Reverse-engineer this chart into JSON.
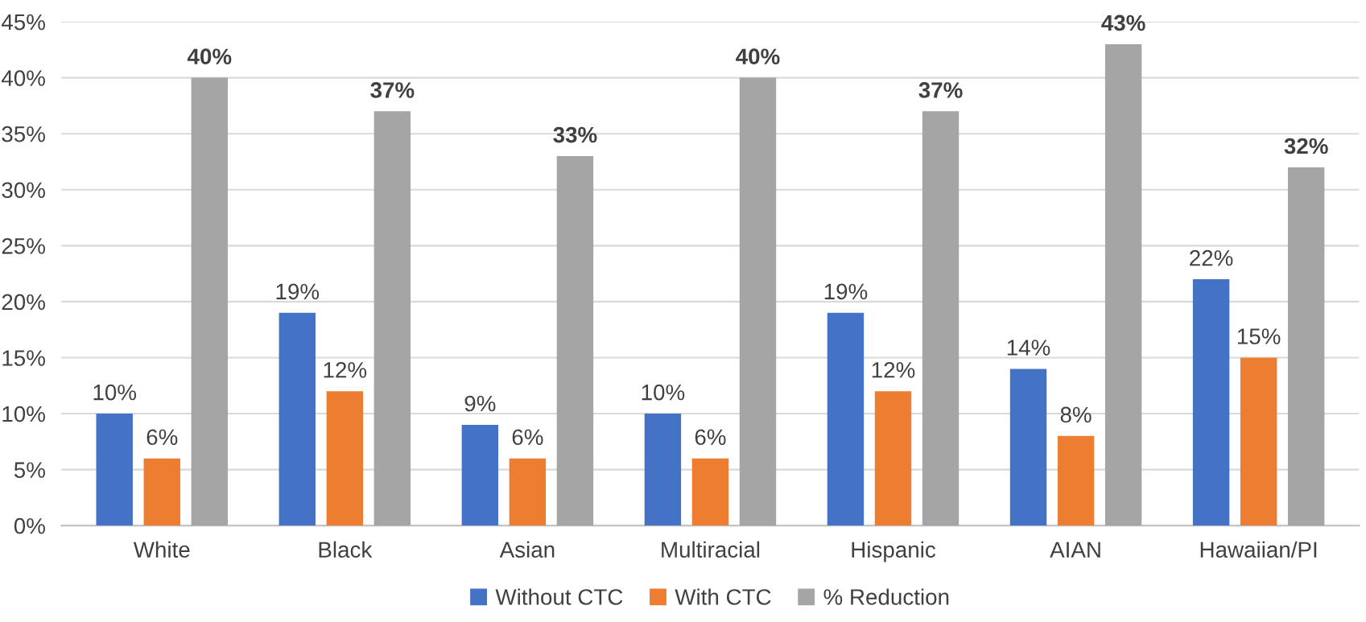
{
  "chart_data": {
    "type": "bar",
    "categories": [
      "White",
      "Black",
      "Asian",
      "Multiracial",
      "Hispanic",
      "AIAN",
      "Hawaiian/PI"
    ],
    "series": [
      {
        "name": "Without CTC",
        "color": "#4472c4",
        "values": [
          10,
          19,
          9,
          10,
          19,
          14,
          22
        ],
        "value_labels": [
          "10%",
          "19%",
          "9%",
          "10%",
          "19%",
          "14%",
          "22%"
        ]
      },
      {
        "name": "With CTC",
        "color": "#ed7d31",
        "values": [
          6,
          12,
          6,
          6,
          12,
          8,
          15
        ],
        "value_labels": [
          "6%",
          "12%",
          "6%",
          "6%",
          "12%",
          "8%",
          "15%"
        ]
      },
      {
        "name": "% Reduction",
        "color": "#a5a5a5",
        "values": [
          40,
          37,
          33,
          40,
          37,
          43,
          32
        ],
        "value_labels": [
          "40%",
          "37%",
          "33%",
          "40%",
          "37%",
          "43%",
          "32%"
        ]
      }
    ],
    "ylim": [
      0,
      45
    ],
    "yticks": [
      {
        "value": 0,
        "label": "0%"
      },
      {
        "value": 5,
        "label": "5%"
      },
      {
        "value": 10,
        "label": "10%"
      },
      {
        "value": 15,
        "label": "15%"
      },
      {
        "value": 20,
        "label": "20%"
      },
      {
        "value": 25,
        "label": "25%"
      },
      {
        "value": 30,
        "label": "30%"
      },
      {
        "value": 35,
        "label": "35%"
      },
      {
        "value": 40,
        "label": "40%"
      },
      {
        "value": 45,
        "label": "45%"
      }
    ],
    "grid": "y",
    "legend": "bottom"
  }
}
